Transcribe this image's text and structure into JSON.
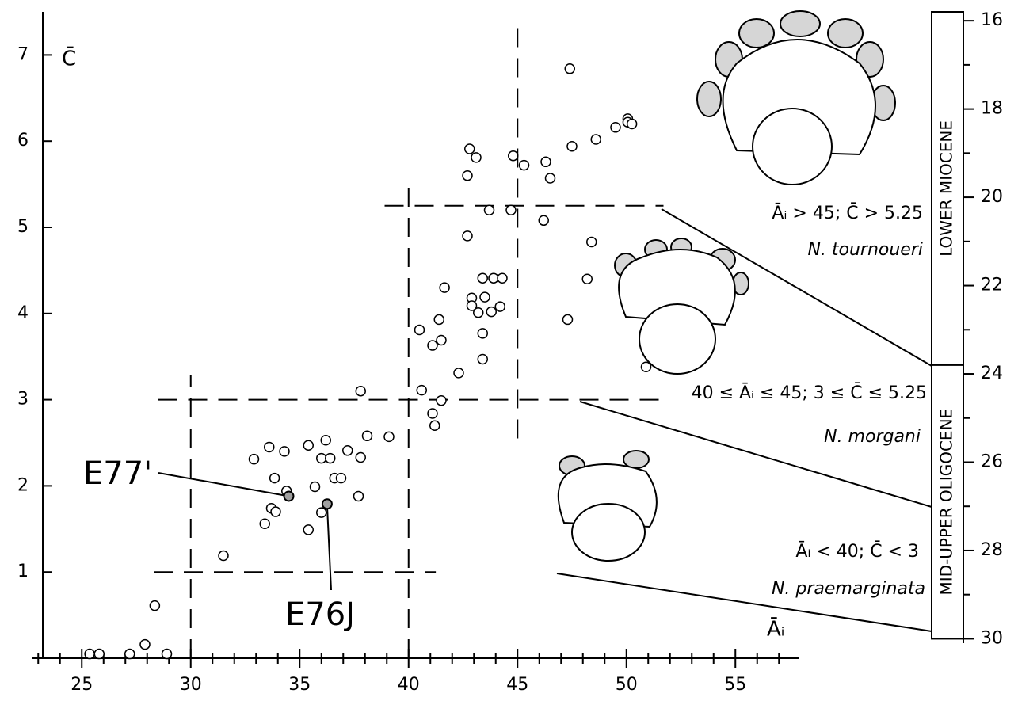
{
  "chart_data": {
    "type": "scatter",
    "x_label": "Āᵢ",
    "y_label": "C̄",
    "xlim": [
      22.7,
      57.9
    ],
    "ylim": [
      0,
      7.5
    ],
    "xticks": [
      25,
      30,
      35,
      40,
      45,
      50,
      55
    ],
    "xminorticks": [
      23,
      24,
      26,
      27,
      28,
      29,
      31,
      32,
      33,
      34,
      36,
      37,
      38,
      39,
      41,
      42,
      43,
      44,
      46,
      47,
      48,
      49,
      51,
      52,
      53,
      54,
      56,
      57
    ],
    "yticks": [
      1,
      2,
      3,
      4,
      5,
      6,
      7
    ],
    "marker_color": "#ffffff",
    "x": [
      25.36,
      25.8,
      27.2,
      27.9,
      28.35,
      28.9,
      31.5,
      32.9,
      33.6,
      34.3,
      33.85,
      34.4,
      33.7,
      33.9,
      33.4,
      35.4,
      35.7,
      35.4,
      36.2,
      36.0,
      36.4,
      36.6,
      36.9,
      36.0,
      37.2,
      37.8,
      37.7,
      38.1,
      39.1,
      37.8,
      40.6,
      41.1,
      41.2,
      41.5,
      40.5,
      41.1,
      41.5,
      41.65,
      41.4,
      42.3,
      42.7,
      42.7,
      42.8,
      43.1,
      42.9,
      42.9,
      43.2,
      43.4,
      43.5,
      43.4,
      43.4,
      43.7,
      43.8,
      43.9,
      44.2,
      44.3,
      44.7,
      44.8,
      45.3,
      46.2,
      46.3,
      46.5,
      47.3,
      47.4,
      47.5,
      48.6,
      48.2,
      48.4,
      49.5,
      50.06,
      50.06,
      50.25,
      50.9
    ],
    "values": [
      0.05,
      0.05,
      0.05,
      0.16,
      0.61,
      0.05,
      1.19,
      2.31,
      2.45,
      2.4,
      2.09,
      1.94,
      1.74,
      1.7,
      1.56,
      2.47,
      1.99,
      1.49,
      2.53,
      2.32,
      2.32,
      2.09,
      2.09,
      1.69,
      2.41,
      2.33,
      1.88,
      2.58,
      2.57,
      3.1,
      3.11,
      2.84,
      2.7,
      2.99,
      3.81,
      3.63,
      3.69,
      4.3,
      3.93,
      3.31,
      4.9,
      5.6,
      5.91,
      5.81,
      4.18,
      4.09,
      4.01,
      4.41,
      4.19,
      3.77,
      3.47,
      5.2,
      4.02,
      4.41,
      4.08,
      4.41,
      5.2,
      5.83,
      5.72,
      5.08,
      5.76,
      5.57,
      3.93,
      6.84,
      5.94,
      6.02,
      4.4,
      4.83,
      6.16,
      6.26,
      6.22,
      6.2,
      3.38
    ],
    "highlighted": {
      "color": "#a0a0a0",
      "labels": [
        "E77'",
        "E76J"
      ],
      "x": [
        34.5,
        36.26
      ],
      "values": [
        1.88,
        1.79
      ]
    },
    "threshold_lines": [
      {
        "x": [
          30,
          30
        ],
        "y": [
          0,
          3.29
        ]
      },
      {
        "x": [
          40,
          40
        ],
        "y": [
          0,
          5.53
        ]
      },
      {
        "x": [
          45,
          45
        ],
        "y": [
          2.55,
          7.4
        ]
      },
      {
        "x": [
          28.3,
          41.25
        ],
        "y": [
          1,
          1
        ]
      },
      {
        "x": [
          28.5,
          51.8
        ],
        "y": [
          3,
          3
        ]
      },
      {
        "x": [
          38.9,
          51.7
        ],
        "y": [
          5.25,
          5.25
        ]
      }
    ],
    "zones": [
      {
        "criteria": "Āᵢ > 45;   C̄ > 5.25",
        "species": "N. tournoueri"
      },
      {
        "criteria": "40 ≤ Āᵢ ≤ 45; 3 ≤ C̄ ≤ 5.25",
        "species": "N. morgani"
      },
      {
        "criteria": "Āᵢ < 40;  C̄ < 3",
        "species": "N. praemarginata"
      }
    ],
    "timescale": {
      "y2lim": [
        15.8,
        30.1
      ],
      "y2ticks": [
        16,
        18,
        20,
        22,
        24,
        26,
        28,
        30
      ],
      "y2minorticks": [
        17,
        19,
        21,
        23,
        25,
        27,
        29
      ],
      "epochs": [
        {
          "name": "LOWER MIOCENE",
          "from": 15.8,
          "to": 23.8
        },
        {
          "name": "MID-UPPER OLIGOCENE",
          "from": 23.8,
          "to": 30
        }
      ]
    }
  }
}
